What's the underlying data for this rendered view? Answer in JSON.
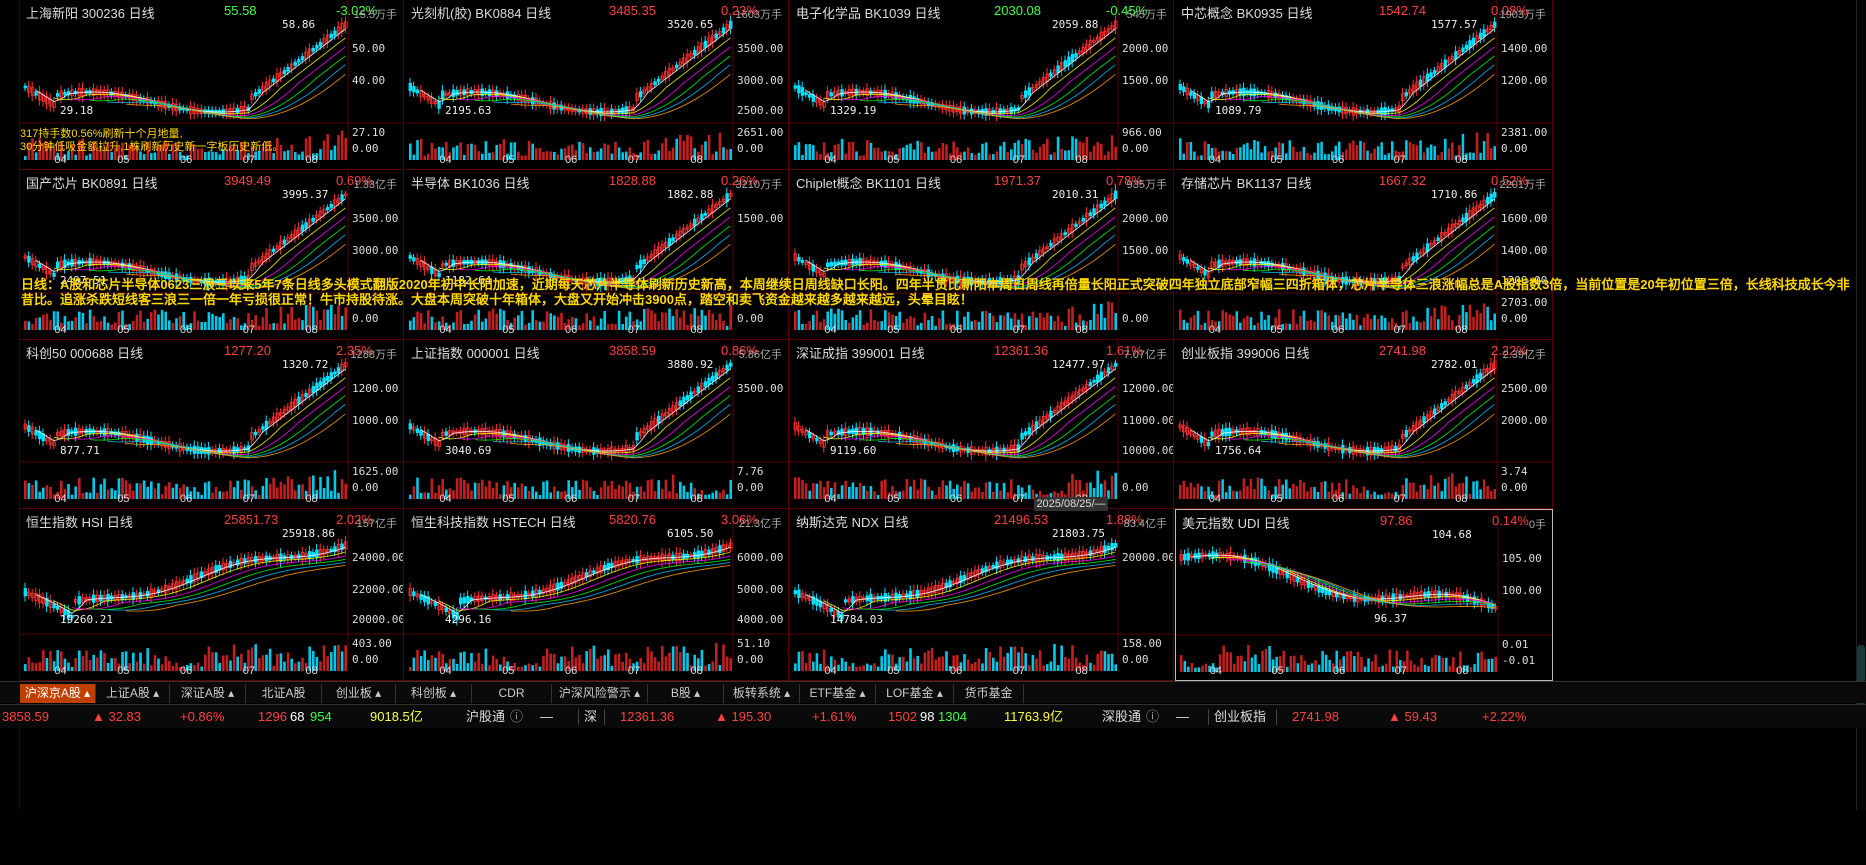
{
  "panels": [
    {
      "name": "上海新阳 300236 日线",
      "price": "55.58",
      "change": "-3.02%",
      "dir": "dn",
      "volmax": "15.5万手",
      "y1": "50.00",
      "y2": "40.00",
      "vtop": "27.10",
      "vzero": "0.00",
      "hi": "58.86",
      "lo": "29.18",
      "months": [
        "04",
        "05",
        "06",
        "07",
        "08"
      ]
    },
    {
      "name": "光刻机(胶) BK0884 日线",
      "price": "3485.35",
      "change": "0.23%",
      "dir": "up",
      "volmax": "1603万手",
      "y1": "3500.00",
      "y2": "3000.00",
      "y3": "2500.00",
      "vtop": "2651.00",
      "vzero": "0.00",
      "hi": "3520.65",
      "lo": "2195.63",
      "months": [
        "04",
        "05",
        "06",
        "07",
        "08"
      ]
    },
    {
      "name": "电子化学品 BK1039 日线",
      "price": "2030.08",
      "change": "-0.45%",
      "dir": "dn",
      "volmax": "545万手",
      "y1": "2000.00",
      "y2": "1500.00",
      "vtop": "966.00",
      "vzero": "0.00",
      "hi": "2059.88",
      "lo": "1329.19",
      "months": [
        "04",
        "05",
        "06",
        "07",
        "08"
      ]
    },
    {
      "name": "中芯概念 BK0935 日线",
      "price": "1542.74",
      "change": "0.08%",
      "dir": "up",
      "volmax": "1903万手",
      "y1": "1400.00",
      "y2": "1200.00",
      "vtop": "2381.00",
      "vzero": "0.00",
      "hi": "1577.57",
      "lo": "1089.79",
      "months": [
        "04",
        "05",
        "06",
        "07",
        "08"
      ]
    },
    {
      "name": "国产芯片 BK0891 日线",
      "price": "3949.49",
      "change": "0.69%",
      "dir": "up",
      "volmax": "1.33亿手",
      "y1": "3500.00",
      "y2": "3000.00",
      "vtop": "",
      "vzero": "0.00",
      "hi": "3995.37",
      "lo": "2497.51",
      "months": [
        "04",
        "05",
        "06",
        "07",
        "08"
      ]
    },
    {
      "name": "半导体 BK1036 日线",
      "price": "1828.88",
      "change": "0.26%",
      "dir": "up",
      "volmax": "3210万手",
      "y1": "1500.00",
      "vtop": "",
      "vzero": "0.00",
      "hi": "1882.88",
      "lo": "1182.64",
      "months": [
        "04",
        "05",
        "06",
        "07",
        "08"
      ]
    },
    {
      "name": "Chiplet概念 BK1101 日线",
      "price": "1971.37",
      "change": "0.78%",
      "dir": "up",
      "volmax": "935万手",
      "y1": "2000.00",
      "y2": "1500.00",
      "vtop": "",
      "vzero": "0.00",
      "hi": "2010.31",
      "lo": "",
      "months": [
        "04",
        "05",
        "06",
        "07",
        "08"
      ]
    },
    {
      "name": "存储芯片 BK1137 日线",
      "price": "1667.32",
      "change": "0.52%",
      "dir": "up",
      "volmax": "2201万手",
      "y1": "1600.00",
      "y2": "1400.00",
      "y3": "1200.00",
      "vtop": "2703.00",
      "vzero": "0.00",
      "hi": "1710.86",
      "lo": "",
      "months": [
        "04",
        "05",
        "06",
        "07",
        "08"
      ]
    },
    {
      "name": "科创50 000688 日线",
      "price": "1277.20",
      "change": "2.35%",
      "dir": "up",
      "volmax": "1288万手",
      "y1": "1200.00",
      "y2": "1000.00",
      "vtop": "1625.00",
      "vzero": "0.00",
      "hi": "1320.72",
      "lo": "877.71",
      "months": [
        "04",
        "05",
        "06",
        "07",
        "08"
      ]
    },
    {
      "name": "上证指数 000001 日线",
      "price": "3858.59",
      "change": "0.86%",
      "dir": "up",
      "volmax": "5.86亿手",
      "y1": "3500.00",
      "vtop": "7.76",
      "vzero": "0.00",
      "hi": "3880.92",
      "lo": "3040.69",
      "months": [
        "04",
        "05",
        "06",
        "07",
        "08"
      ]
    },
    {
      "name": "深证成指 399001 日线",
      "price": "12361.36",
      "change": "1.61%",
      "dir": "up",
      "volmax": "7.07亿手",
      "y1": "12000.00",
      "y2": "11000.00",
      "y3": "10000.00",
      "vtop": "",
      "vzero": "0.00",
      "hi": "12477.97",
      "lo": "9119.60",
      "months": [
        "04",
        "05",
        "06",
        "07",
        "08"
      ]
    },
    {
      "name": "创业板指 399006 日线",
      "price": "2741.98",
      "change": "2.22%",
      "dir": "up",
      "volmax": "2.39亿手",
      "y1": "2500.00",
      "y2": "2000.00",
      "vtop": "3.74",
      "vzero": "0.00",
      "hi": "2782.01",
      "lo": "1756.64",
      "months": [
        "04",
        "05",
        "06",
        "07",
        "08"
      ]
    },
    {
      "name": "恒生指数 HSI 日线",
      "price": "25851.73",
      "change": "2.02%",
      "dir": "up",
      "volmax": "157亿手",
      "y1": "24000.00",
      "y2": "22000.00",
      "y3": "20000.00",
      "vtop": "403.00",
      "vzero": "0.00",
      "hi": "25918.86",
      "lo": "19260.21",
      "months": [
        "04",
        "05",
        "06",
        "07",
        "08"
      ]
    },
    {
      "name": "恒生科技指数 HSTECH 日线",
      "price": "5820.76",
      "change": "3.06%",
      "dir": "up",
      "volmax": "21.3亿手",
      "y1": "6000.00",
      "y2": "5000.00",
      "y3": "4000.00",
      "vtop": "51.10",
      "vzero": "0.00",
      "hi": "6105.50",
      "lo": "4296.16",
      "months": [
        "04",
        "05",
        "06",
        "07",
        "08"
      ]
    },
    {
      "name": "纳斯达克 NDX 日线",
      "price": "21496.53",
      "change": "1.88%",
      "dir": "up",
      "volmax": "83.4亿手",
      "y1": "20000.00",
      "vtop": "158.00",
      "vzero": "0.00",
      "hi": "21803.75",
      "lo": "14784.03",
      "months": [
        "04",
        "05",
        "06",
        "07",
        "08"
      ]
    },
    {
      "name": "美元指数 UDI 日线",
      "price": "97.86",
      "change": "0.14%",
      "dir": "up",
      "volmax": "0手",
      "y1": "105.00",
      "y2": "100.00",
      "vtop": "0.01",
      "vzero": "-0.01",
      "hi": "104.68",
      "lo": "96.37",
      "months": [
        "04",
        "05",
        "06",
        "07",
        "08"
      ]
    }
  ],
  "news_left": "317持手数0.56%刷新十个月地量,\n30分钟低吸金额拉升,1株刷新历史新一字板历史新低。",
  "news": "日线：A股和芯片半导体0623三浪三以来5年7条日线多头模式翻版2020年初中长阳加速，近期每天芯片半导体刷新历史新高，本周继续日周线缺口长阳。四年半贯比新阳本周日周线再倍量长阳正式突破四年独立底部窄幅三四折箱体，芯片半导体三浪涨幅总是A股指数3倍，当前位置是20年初位置三倍，长线科技成长今非昔比。追涨杀跌短线客三浪三一倍一年亏损很正常！牛市持股待涨。大盘本周突破十年箱体，大盘又开始冲击3900点，踏空和卖飞资金越来越多越来越远，头晕目眩！",
  "date_tooltip": "2025/08/25/—",
  "tabs": [
    "沪深京A股",
    "上证A股",
    "深证A股",
    "北证A股",
    "创业板",
    "科创板",
    "CDR",
    "沪深风险警示",
    "B股",
    "板转系统",
    "ETF基金",
    "LOF基金",
    "货币基金"
  ],
  "status": {
    "sh_index": "3858.59",
    "sh_chg": "▲ 32.83",
    "sh_pct": "+0.86%",
    "sh_up": "1296",
    "sh_flat": "68",
    "sh_dn": "954",
    "sh_amt": "9018.5亿",
    "sh_conn": "沪股通",
    "dash1": "—",
    "sz_label": "深",
    "sz_index": "12361.36",
    "sz_chg": "▲ 195.30",
    "sz_pct": "+1.61%",
    "sz_up": "1502",
    "sz_flat": "98",
    "sz_dn": "1304",
    "sz_amt": "11763.9亿",
    "sz_conn": "深股通",
    "dash2": "—",
    "cy_label": "创业板指",
    "cy_index": "2741.98",
    "cy_chg": "▲ 59.43",
    "cy_pct": "+2.22%"
  },
  "colors": {
    "up": "#ff3030",
    "down": "#00e0ff",
    "accent": "#c04000"
  }
}
